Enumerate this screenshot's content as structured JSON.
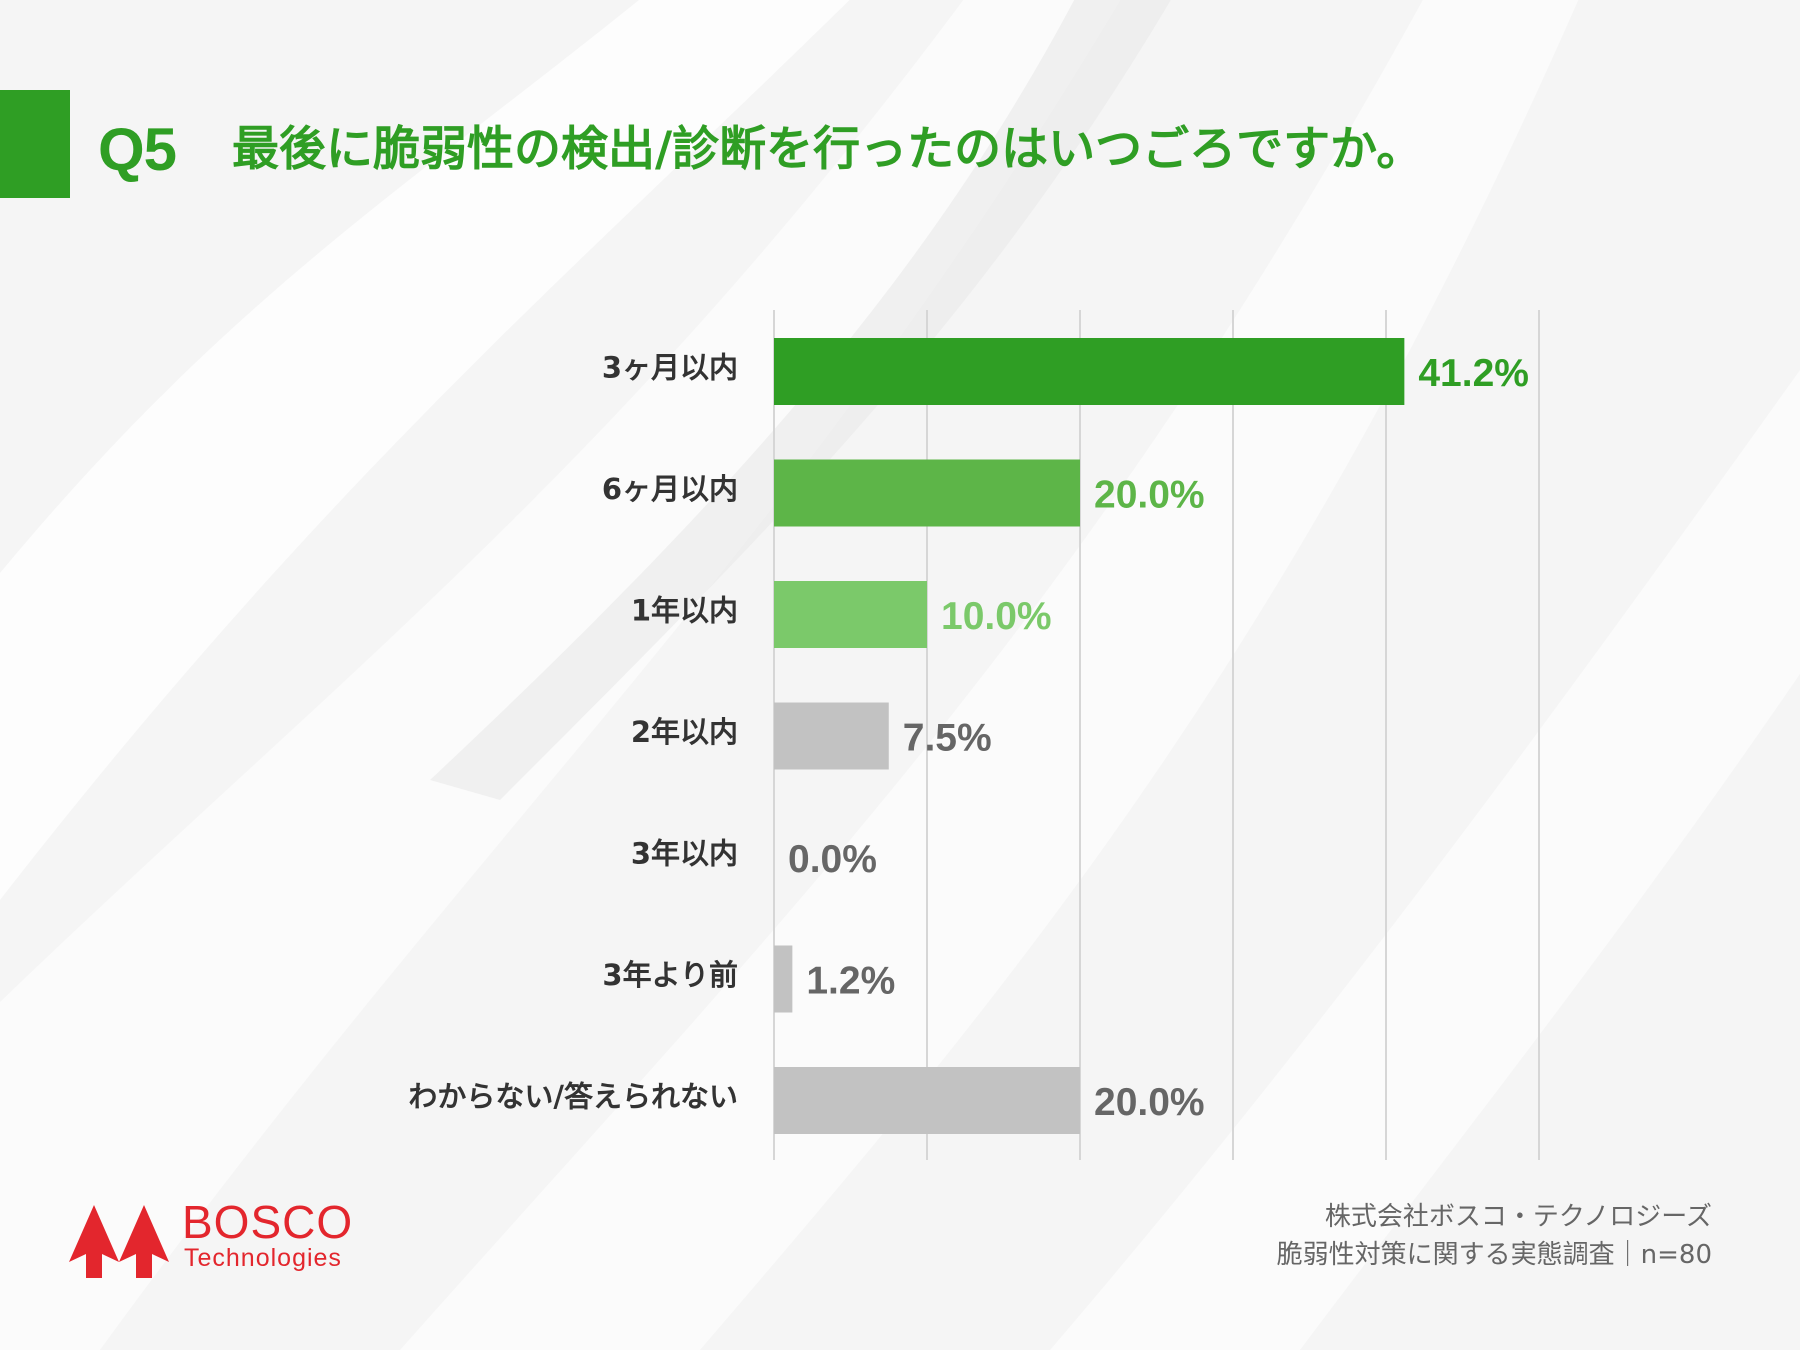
{
  "question": {
    "number": "Q5",
    "text": "最後に脆弱性の検出/診断を行ったのはいつごろですか。"
  },
  "colors": {
    "brand_green": "#2f9e24",
    "green_mid": "#5db548",
    "green_light": "#7bc96a",
    "gray_bar": "#c2c2c2",
    "gray_text": "#666666",
    "brand_red": "#e3262d"
  },
  "chart_data": {
    "type": "bar",
    "orientation": "horizontal",
    "categories": [
      "3ヶ月以内",
      "6ヶ月以内",
      "1年以内",
      "2年以内",
      "3年以内",
      "3年より前",
      "わからない/答えられない"
    ],
    "values": [
      41.2,
      20.0,
      10.0,
      7.5,
      0.0,
      1.2,
      20.0
    ],
    "value_labels": [
      "41.2%",
      "20.0%",
      "10.0%",
      "7.5%",
      "0.0%",
      "1.2%",
      "20.0%"
    ],
    "bar_colors": [
      "#2f9e24",
      "#5db548",
      "#7bc96a",
      "#c2c2c2",
      "#c2c2c2",
      "#c2c2c2",
      "#c2c2c2"
    ],
    "label_colors": [
      "#2f9e24",
      "#5db548",
      "#7bc96a",
      "#666666",
      "#666666",
      "#666666",
      "#666666"
    ],
    "xlim": [
      0,
      50
    ],
    "gridlines": [
      0,
      10,
      20,
      30,
      40,
      50
    ],
    "grid": true,
    "xlabel": "",
    "ylabel": ""
  },
  "logo": {
    "name": "BOSCO",
    "sub": "Technologies",
    "icon": "double-tree-arrow-logo"
  },
  "source": {
    "line1": "株式会社ボスコ・テクノロジーズ",
    "line2": "脆弱性対策に関する実態調査｜n=80"
  }
}
